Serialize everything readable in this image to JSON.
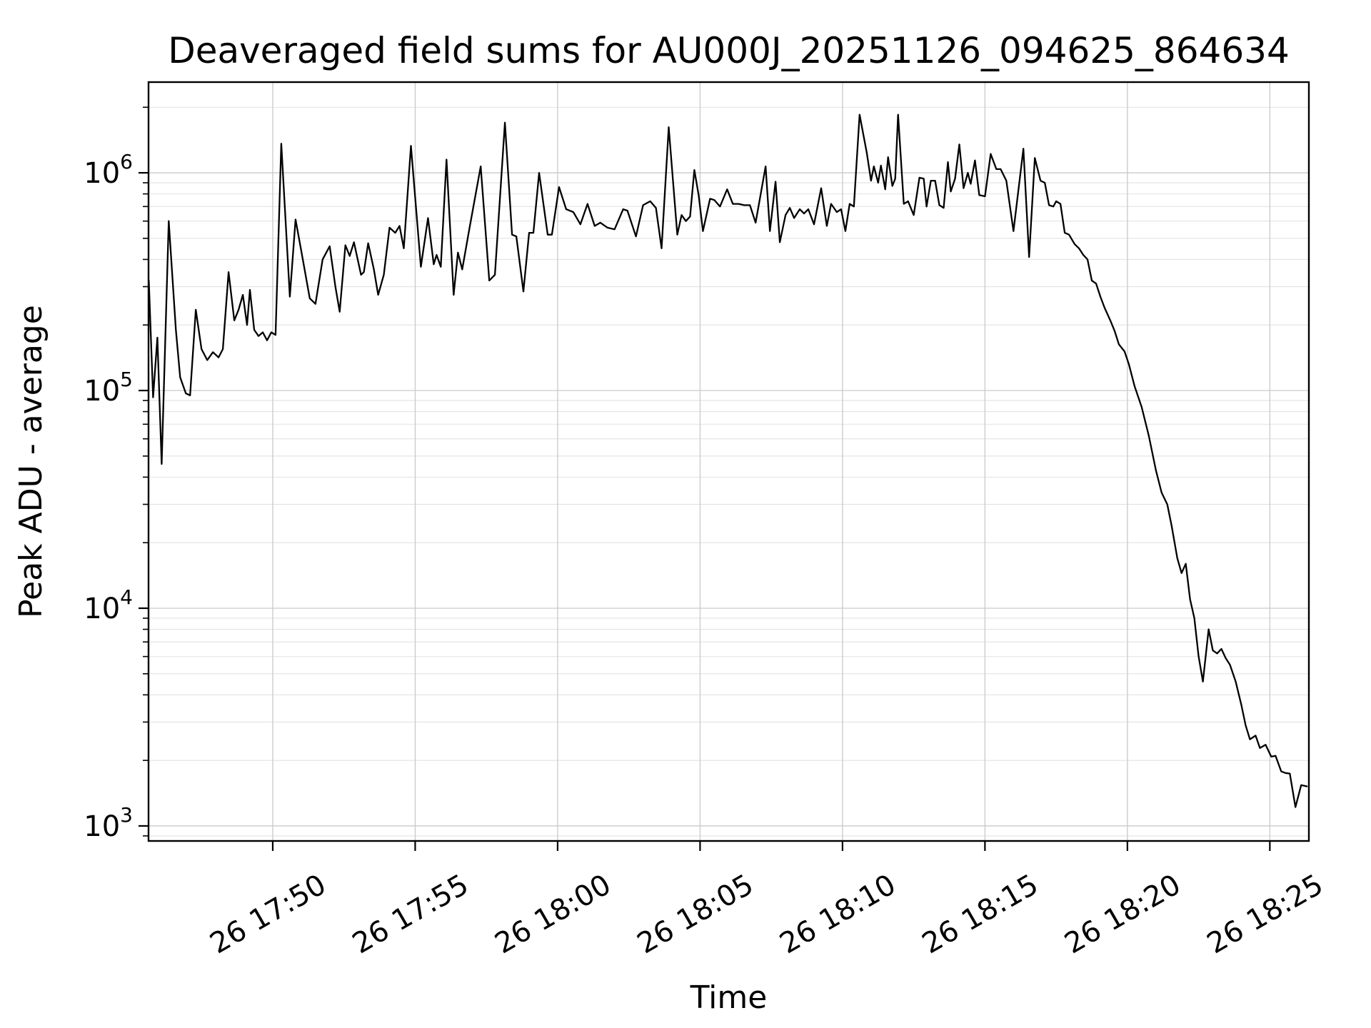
{
  "figure": {
    "title": "Deaveraged field sums for AU000J_20251126_094625_864634",
    "xlabel": "Time",
    "ylabel": "Peak ADU - average"
  },
  "colors": {
    "line": "#000000",
    "spine": "#000000",
    "grid_major": "#c9c9c9",
    "grid_minor": "#e2e2e2",
    "background": "#ffffff",
    "text": "#000000"
  },
  "chart_data": {
    "type": "line",
    "title": "Deaveraged field sums for AU000J_20251126_094625_864634",
    "xlabel": "Time",
    "ylabel": "Peak ADU - average",
    "yscale": "log",
    "grid": "both",
    "legend_position": "none",
    "x_unit": "minutes after day-26 17:00",
    "xlim": [
      45.64,
      86.37
    ],
    "ylim": [
      853,
      2610000
    ],
    "xticks": [
      {
        "pos": 50,
        "label": "26 17:50"
      },
      {
        "pos": 55,
        "label": "26 17:55"
      },
      {
        "pos": 60,
        "label": "26 18:00"
      },
      {
        "pos": 65,
        "label": "26 18:05"
      },
      {
        "pos": 70,
        "label": "26 18:10"
      },
      {
        "pos": 75,
        "label": "26 18:15"
      },
      {
        "pos": 80,
        "label": "26 18:20"
      },
      {
        "pos": 85,
        "label": "26 18:25"
      }
    ],
    "yticks": [
      {
        "value": 1000,
        "base": "10",
        "exponent": "3"
      },
      {
        "value": 10000,
        "base": "10",
        "exponent": "4"
      },
      {
        "value": 100000,
        "base": "10",
        "exponent": "5"
      },
      {
        "value": 1000000,
        "base": "10",
        "exponent": "6"
      }
    ],
    "series": [
      {
        "name": "peak-adu-average",
        "color": "#000000",
        "points": [
          [
            45.65,
            320000
          ],
          [
            45.8,
            93000
          ],
          [
            45.95,
            175000
          ],
          [
            46.1,
            46000
          ],
          [
            46.35,
            600000
          ],
          [
            46.6,
            190000
          ],
          [
            46.75,
            115000
          ],
          [
            46.95,
            97000
          ],
          [
            47.1,
            95000
          ],
          [
            47.3,
            235000
          ],
          [
            47.5,
            155000
          ],
          [
            47.7,
            138000
          ],
          [
            47.9,
            150000
          ],
          [
            48.1,
            142000
          ],
          [
            48.25,
            155000
          ],
          [
            48.45,
            350000
          ],
          [
            48.65,
            210000
          ],
          [
            48.8,
            235000
          ],
          [
            48.95,
            275000
          ],
          [
            49.1,
            200000
          ],
          [
            49.2,
            290000
          ],
          [
            49.35,
            190000
          ],
          [
            49.5,
            178000
          ],
          [
            49.65,
            185000
          ],
          [
            49.8,
            170000
          ],
          [
            49.95,
            185000
          ],
          [
            50.1,
            180000
          ],
          [
            50.3,
            1360000
          ],
          [
            50.6,
            270000
          ],
          [
            50.8,
            610000
          ],
          [
            51.0,
            440000
          ],
          [
            51.3,
            265000
          ],
          [
            51.5,
            250000
          ],
          [
            51.75,
            400000
          ],
          [
            52.0,
            460000
          ],
          [
            52.2,
            300000
          ],
          [
            52.35,
            230000
          ],
          [
            52.55,
            465000
          ],
          [
            52.7,
            415000
          ],
          [
            52.85,
            480000
          ],
          [
            53.1,
            340000
          ],
          [
            53.2,
            350000
          ],
          [
            53.35,
            475000
          ],
          [
            53.55,
            360000
          ],
          [
            53.7,
            275000
          ],
          [
            53.9,
            340000
          ],
          [
            54.1,
            560000
          ],
          [
            54.3,
            530000
          ],
          [
            54.45,
            570000
          ],
          [
            54.6,
            450000
          ],
          [
            54.85,
            1330000
          ],
          [
            55.2,
            370000
          ],
          [
            55.45,
            620000
          ],
          [
            55.65,
            380000
          ],
          [
            55.75,
            420000
          ],
          [
            55.9,
            370000
          ],
          [
            56.1,
            1150000
          ],
          [
            56.35,
            275000
          ],
          [
            56.5,
            430000
          ],
          [
            56.65,
            360000
          ],
          [
            56.9,
            550000
          ],
          [
            57.3,
            1070000
          ],
          [
            57.6,
            320000
          ],
          [
            57.8,
            340000
          ],
          [
            58.15,
            1700000
          ],
          [
            58.4,
            520000
          ],
          [
            58.55,
            510000
          ],
          [
            58.8,
            285000
          ],
          [
            59.0,
            530000
          ],
          [
            59.15,
            530000
          ],
          [
            59.35,
            1000000
          ],
          [
            59.65,
            520000
          ],
          [
            59.8,
            520000
          ],
          [
            60.05,
            860000
          ],
          [
            60.3,
            680000
          ],
          [
            60.55,
            660000
          ],
          [
            60.8,
            580000
          ],
          [
            61.05,
            720000
          ],
          [
            61.3,
            570000
          ],
          [
            61.5,
            590000
          ],
          [
            61.75,
            560000
          ],
          [
            62.0,
            550000
          ],
          [
            62.3,
            680000
          ],
          [
            62.45,
            670000
          ],
          [
            62.75,
            510000
          ],
          [
            63.0,
            710000
          ],
          [
            63.25,
            740000
          ],
          [
            63.45,
            690000
          ],
          [
            63.65,
            450000
          ],
          [
            63.9,
            1620000
          ],
          [
            64.2,
            520000
          ],
          [
            64.35,
            640000
          ],
          [
            64.5,
            600000
          ],
          [
            64.65,
            630000
          ],
          [
            64.8,
            1030000
          ],
          [
            64.95,
            790000
          ],
          [
            65.1,
            540000
          ],
          [
            65.35,
            760000
          ],
          [
            65.5,
            750000
          ],
          [
            65.7,
            700000
          ],
          [
            65.95,
            840000
          ],
          [
            66.15,
            720000
          ],
          [
            66.35,
            720000
          ],
          [
            66.55,
            710000
          ],
          [
            66.75,
            710000
          ],
          [
            66.95,
            590000
          ],
          [
            67.3,
            1070000
          ],
          [
            67.45,
            540000
          ],
          [
            67.65,
            910000
          ],
          [
            67.8,
            480000
          ],
          [
            68.0,
            640000
          ],
          [
            68.15,
            690000
          ],
          [
            68.3,
            620000
          ],
          [
            68.5,
            680000
          ],
          [
            68.65,
            650000
          ],
          [
            68.8,
            680000
          ],
          [
            69.0,
            580000
          ],
          [
            69.25,
            850000
          ],
          [
            69.45,
            570000
          ],
          [
            69.6,
            720000
          ],
          [
            69.8,
            660000
          ],
          [
            69.95,
            680000
          ],
          [
            70.1,
            540000
          ],
          [
            70.25,
            720000
          ],
          [
            70.4,
            700000
          ],
          [
            70.6,
            1850000
          ],
          [
            70.85,
            1240000
          ],
          [
            71.0,
            920000
          ],
          [
            71.1,
            1070000
          ],
          [
            71.25,
            900000
          ],
          [
            71.35,
            1080000
          ],
          [
            71.5,
            840000
          ],
          [
            71.6,
            1180000
          ],
          [
            71.75,
            870000
          ],
          [
            71.85,
            940000
          ],
          [
            71.95,
            1850000
          ],
          [
            72.15,
            720000
          ],
          [
            72.3,
            740000
          ],
          [
            72.5,
            640000
          ],
          [
            72.7,
            950000
          ],
          [
            72.85,
            940000
          ],
          [
            72.95,
            700000
          ],
          [
            73.1,
            920000
          ],
          [
            73.25,
            920000
          ],
          [
            73.4,
            710000
          ],
          [
            73.55,
            690000
          ],
          [
            73.7,
            1120000
          ],
          [
            73.8,
            820000
          ],
          [
            73.95,
            940000
          ],
          [
            74.1,
            1350000
          ],
          [
            74.25,
            850000
          ],
          [
            74.4,
            1000000
          ],
          [
            74.5,
            890000
          ],
          [
            74.65,
            1140000
          ],
          [
            74.8,
            790000
          ],
          [
            75.0,
            780000
          ],
          [
            75.2,
            1220000
          ],
          [
            75.4,
            1040000
          ],
          [
            75.55,
            1040000
          ],
          [
            75.75,
            920000
          ],
          [
            76.0,
            540000
          ],
          [
            76.35,
            1290000
          ],
          [
            76.55,
            410000
          ],
          [
            76.75,
            1170000
          ],
          [
            76.95,
            920000
          ],
          [
            77.1,
            900000
          ],
          [
            77.25,
            710000
          ],
          [
            77.4,
            700000
          ],
          [
            77.5,
            740000
          ],
          [
            77.65,
            720000
          ],
          [
            77.8,
            530000
          ],
          [
            77.95,
            520000
          ],
          [
            78.15,
            470000
          ],
          [
            78.3,
            450000
          ],
          [
            78.45,
            420000
          ],
          [
            78.6,
            400000
          ],
          [
            78.75,
            320000
          ],
          [
            78.9,
            310000
          ],
          [
            79.05,
            270000
          ],
          [
            79.2,
            240000
          ],
          [
            79.4,
            210000
          ],
          [
            79.55,
            188000
          ],
          [
            79.7,
            163000
          ],
          [
            79.9,
            151000
          ],
          [
            80.05,
            132000
          ],
          [
            80.25,
            105000
          ],
          [
            80.5,
            84000
          ],
          [
            80.75,
            62000
          ],
          [
            81.0,
            43000
          ],
          [
            81.2,
            34000
          ],
          [
            81.4,
            30000
          ],
          [
            81.55,
            24000
          ],
          [
            81.75,
            17000
          ],
          [
            81.9,
            14500
          ],
          [
            82.05,
            16000
          ],
          [
            82.2,
            11000
          ],
          [
            82.35,
            9000
          ],
          [
            82.5,
            6000
          ],
          [
            82.65,
            4600
          ],
          [
            82.85,
            8000
          ],
          [
            83.0,
            6400
          ],
          [
            83.15,
            6200
          ],
          [
            83.3,
            6500
          ],
          [
            83.45,
            5900
          ],
          [
            83.6,
            5500
          ],
          [
            83.8,
            4600
          ],
          [
            84.0,
            3600
          ],
          [
            84.15,
            2900
          ],
          [
            84.3,
            2500
          ],
          [
            84.5,
            2600
          ],
          [
            84.65,
            2280
          ],
          [
            84.85,
            2360
          ],
          [
            85.05,
            2080
          ],
          [
            85.2,
            2100
          ],
          [
            85.4,
            1780
          ],
          [
            85.55,
            1750
          ],
          [
            85.7,
            1740
          ],
          [
            85.9,
            1220
          ],
          [
            86.1,
            1540
          ],
          [
            86.3,
            1520
          ]
        ]
      }
    ]
  }
}
